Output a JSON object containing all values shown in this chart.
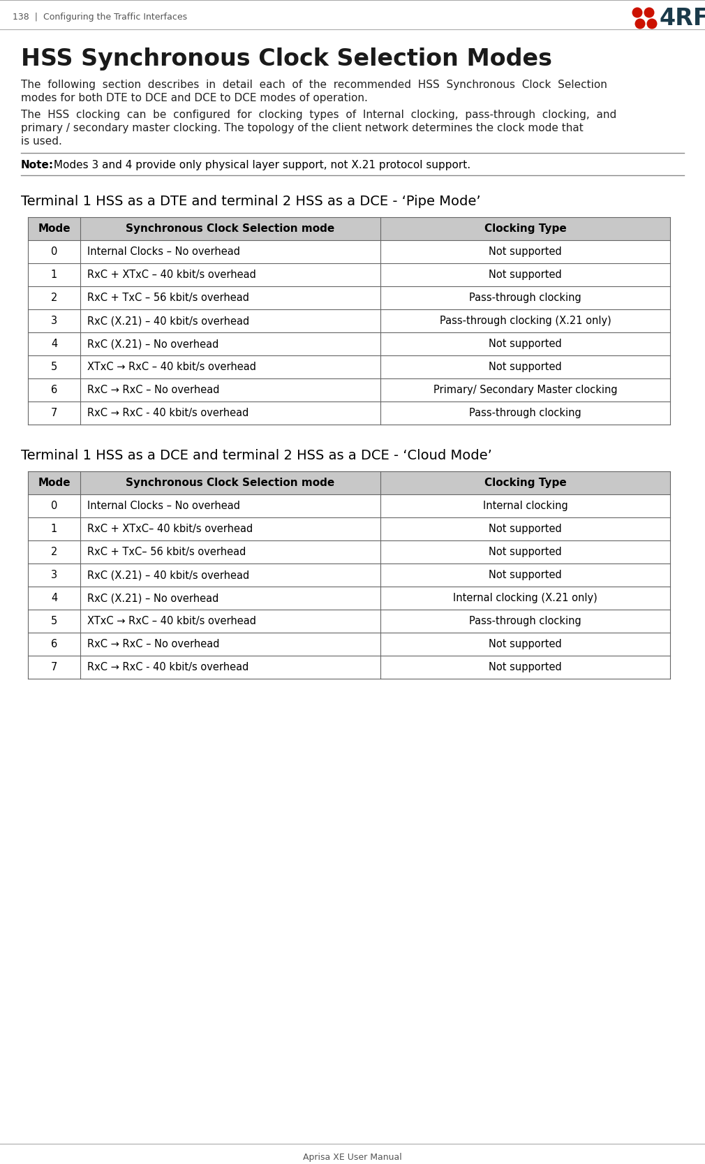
{
  "page_header_left": "138  |  Configuring the Traffic Interfaces",
  "page_footer": "Aprisa XE User Manual",
  "main_title": "HSS Synchronous Clock Selection Modes",
  "body_text1a": "The  following  section  describes  in  detail  each  of  the  recommended  HSS  Synchronous  Clock  Selection",
  "body_text1b": "modes for both DTE to DCE and DCE to DCE modes of operation.",
  "body_text2a": "The  HSS  clocking  can  be  configured  for  clocking  types  of  Internal  clocking,  pass-through  clocking,  and",
  "body_text2b": "primary / secondary master clocking. The topology of the client network determines the clock mode that",
  "body_text2c": "is used.",
  "note_bold": "Note:",
  "note_rest": " Modes 3 and 4 provide only physical layer support, not X.21 protocol support.",
  "table1_title": "Terminal 1 HSS as a DTE and terminal 2 HSS as a DCE - ‘Pipe Mode’",
  "table1_headers": [
    "Mode",
    "Synchronous Clock Selection mode",
    "Clocking Type"
  ],
  "table1_rows": [
    [
      "0",
      "Internal Clocks – No overhead",
      "Not supported"
    ],
    [
      "1",
      "RxC + XTxC – 40 kbit/s overhead",
      "Not supported"
    ],
    [
      "2",
      "RxC + TxC – 56 kbit/s overhead",
      "Pass-through clocking"
    ],
    [
      "3",
      "RxC (X.21) – 40 kbit/s overhead",
      "Pass-through clocking (X.21 only)"
    ],
    [
      "4",
      "RxC (X.21) – No overhead",
      "Not supported"
    ],
    [
      "5",
      "XTxC → RxC – 40 kbit/s overhead",
      "Not supported"
    ],
    [
      "6",
      "RxC → RxC – No overhead",
      "Primary/ Secondary Master clocking"
    ],
    [
      "7",
      "RxC → RxC - 40 kbit/s overhead",
      "Pass-through clocking"
    ]
  ],
  "table2_title": "Terminal 1 HSS as a DCE and terminal 2 HSS as a DCE - ‘Cloud Mode’",
  "table2_headers": [
    "Mode",
    "Synchronous Clock Selection mode",
    "Clocking Type"
  ],
  "table2_rows": [
    [
      "0",
      "Internal Clocks – No overhead",
      "Internal clocking"
    ],
    [
      "1",
      "RxC + XTxC– 40 kbit/s overhead",
      "Not supported"
    ],
    [
      "2",
      "RxC + TxC– 56 kbit/s overhead",
      "Not supported"
    ],
    [
      "3",
      "RxC (X.21) – 40 kbit/s overhead",
      "Not supported"
    ],
    [
      "4",
      "RxC (X.21) – No overhead",
      "Internal clocking (X.21 only)"
    ],
    [
      "5",
      "XTxC → RxC – 40 kbit/s overhead",
      "Pass-through clocking"
    ],
    [
      "6",
      "RxC → RxC – No overhead",
      "Not supported"
    ],
    [
      "7",
      "RxC → RxC - 40 kbit/s overhead",
      "Not supported"
    ]
  ],
  "bg_color": "#ffffff",
  "header_bg": "#c8c8c8",
  "table_border_color": "#666666",
  "text_color": "#222222",
  "logo_red": "#cc1100",
  "logo_dark": "#1a3a4a",
  "title_font_size": 24,
  "body_font_size": 11,
  "note_font_size": 11,
  "table_title_font_size": 14,
  "table_header_font_size": 11,
  "table_body_font_size": 10.5,
  "page_header_font_size": 9,
  "footer_font_size": 9
}
